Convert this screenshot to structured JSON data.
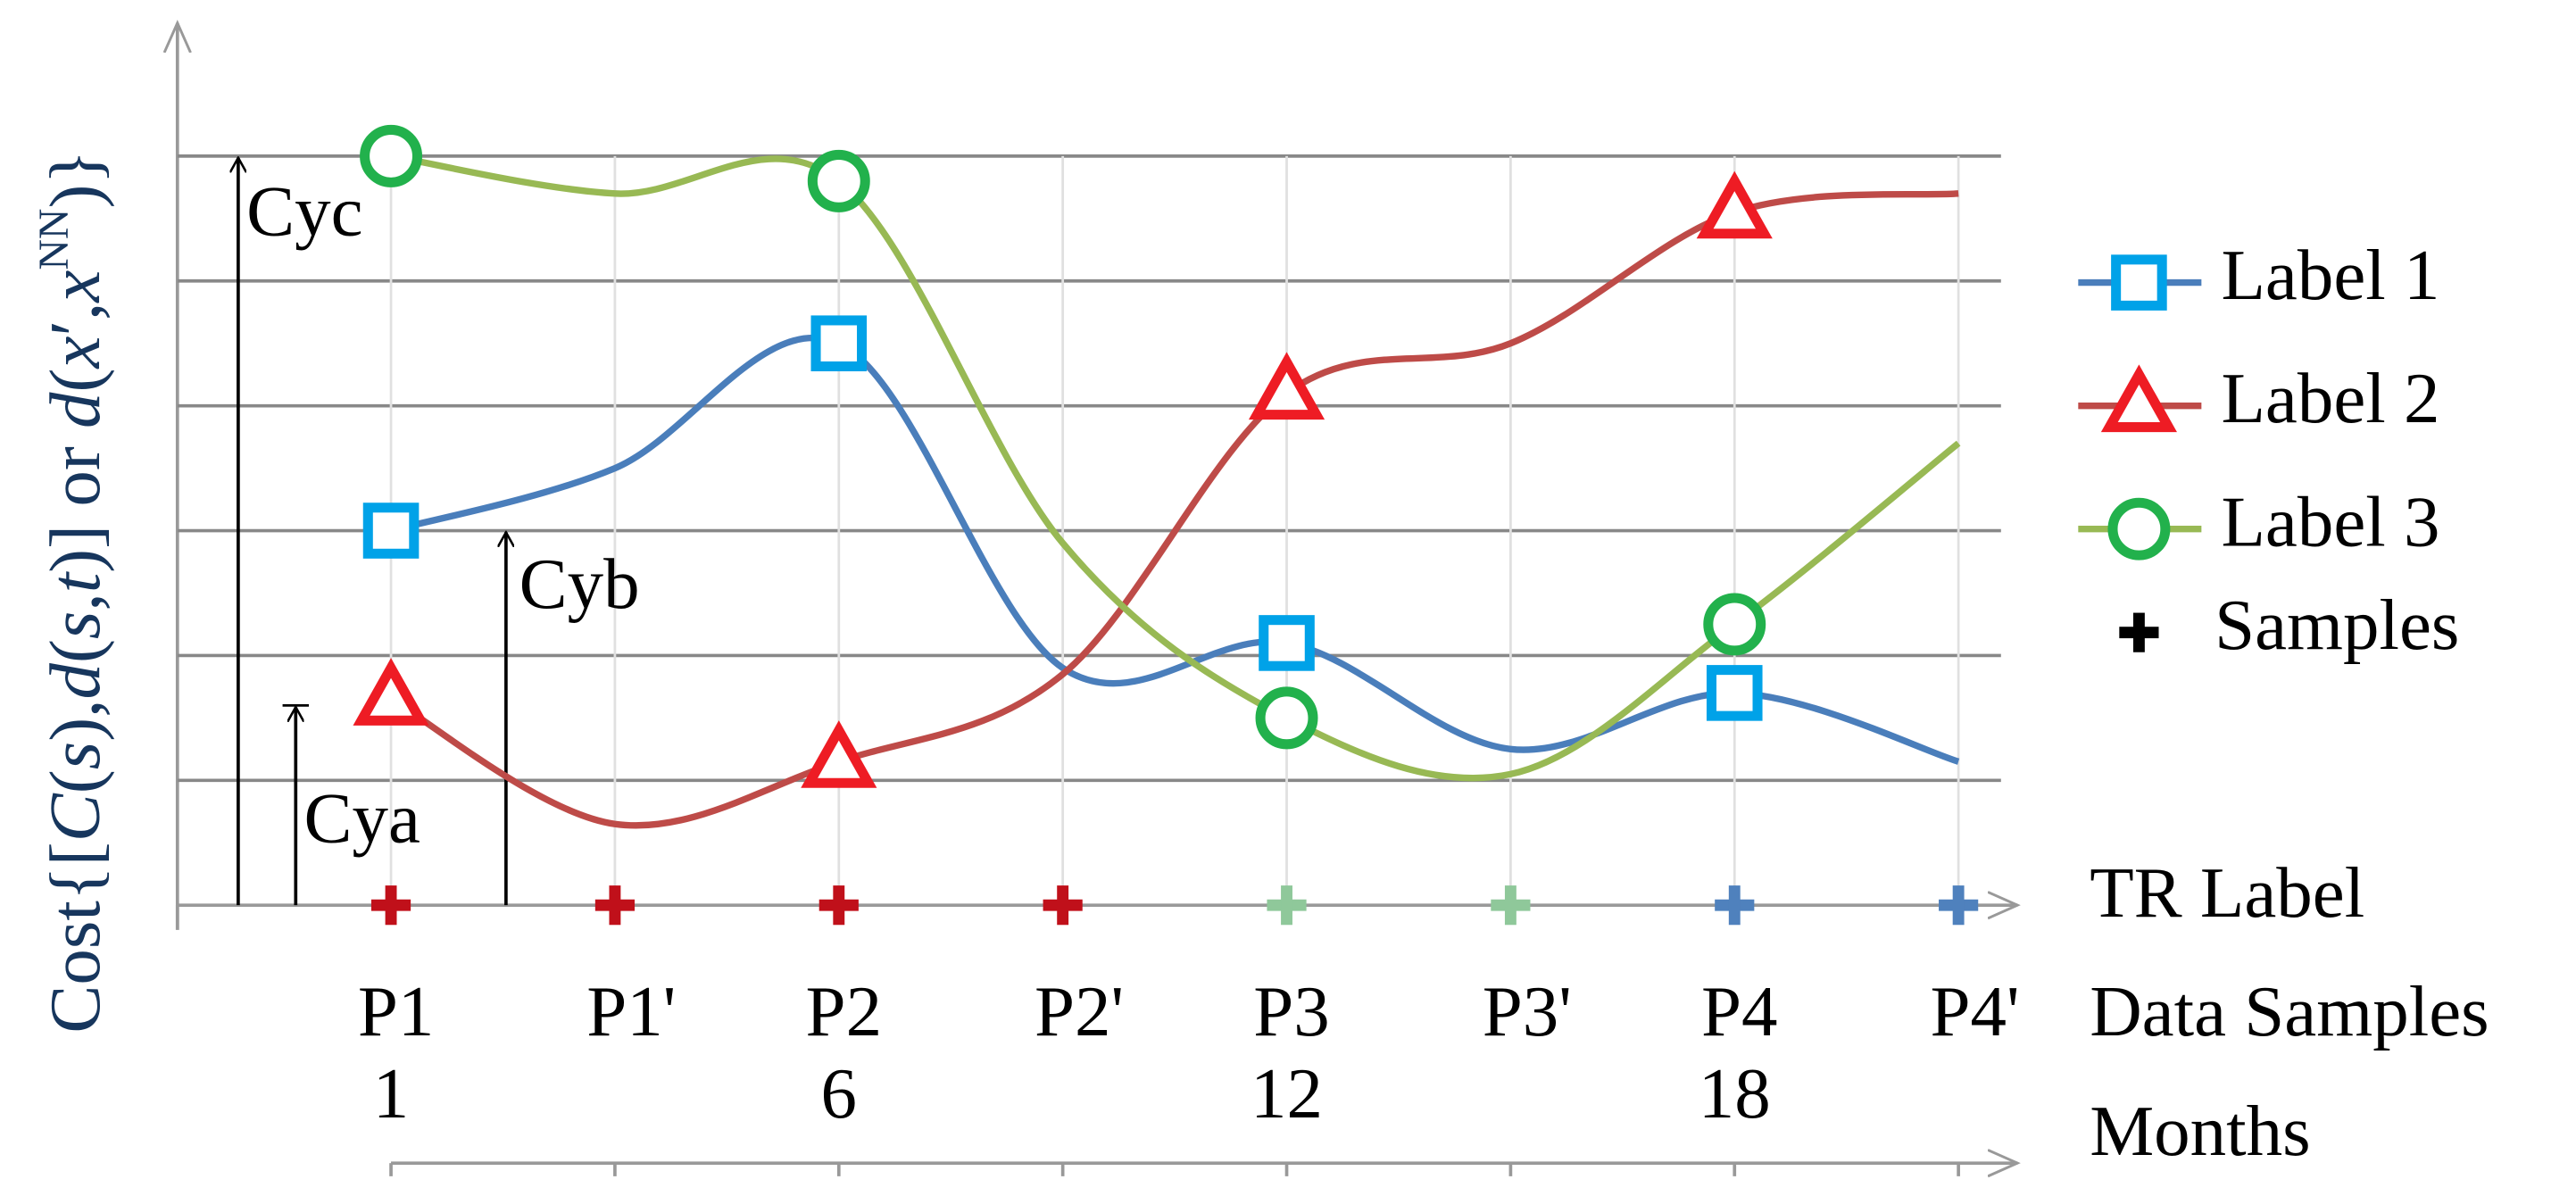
{
  "chart_data": {
    "type": "line",
    "y_label_parts": [
      {
        "text": "Cost{[",
        "style": "normal"
      },
      {
        "text": "C",
        "style": "italic"
      },
      {
        "text": "(",
        "style": "normal"
      },
      {
        "text": "s",
        "style": "italic"
      },
      {
        "text": "),",
        "style": "normal"
      },
      {
        "text": "d",
        "style": "italic"
      },
      {
        "text": "(",
        "style": "normal"
      },
      {
        "text": "s",
        "style": "italic"
      },
      {
        "text": ",",
        "style": "normal"
      },
      {
        "text": "t",
        "style": "italic"
      },
      {
        "text": ")] or ",
        "style": "normal"
      },
      {
        "text": "d",
        "style": "italic"
      },
      {
        "text": "(",
        "style": "normal"
      },
      {
        "text": "x",
        "style": "italic"
      },
      {
        "text": "′,",
        "style": "normal"
      },
      {
        "text": "x",
        "style": "italic"
      },
      {
        "text": "NN",
        "style": "sup"
      },
      {
        "text": ")}",
        "style": "normal"
      }
    ],
    "categories": [
      "P1",
      "P1'",
      "P2",
      "P2'",
      "P3",
      "P3'",
      "P4",
      "P4'"
    ],
    "months": [
      "1",
      null,
      "6",
      null,
      "12",
      null,
      "18",
      null
    ],
    "row_labels": {
      "tr_label": "TR Label",
      "data_samples": "Data Samples",
      "months": "Months"
    },
    "ylim": [
      0,
      7
    ],
    "yticks": [
      1,
      2,
      3,
      4,
      5,
      6
    ],
    "grid": true,
    "series": [
      {
        "name": "Label 1",
        "color": "#4a7ebb",
        "marker_color": "#00a2e8",
        "marker": "square",
        "values": [
          3.0,
          3.5,
          4.5,
          1.9,
          2.1,
          1.25,
          1.7,
          1.15
        ]
      },
      {
        "name": "Label 2",
        "color": "#be4b48",
        "marker_color": "#ee1c24",
        "marker": "triangle",
        "values": [
          1.65,
          0.65,
          1.15,
          1.85,
          4.1,
          4.5,
          5.55,
          5.7
        ]
      },
      {
        "name": "Label 3",
        "color": "#98b954",
        "marker_color": "#22b14c",
        "marker": "circle",
        "values": [
          6.0,
          5.7,
          5.8,
          2.9,
          1.5,
          1.05,
          2.25,
          3.7
        ]
      }
    ],
    "samples": {
      "name": "Samples",
      "color": "#000000",
      "colors": [
        "#c0101a",
        "#c0101a",
        "#c0101a",
        "#c0101a",
        "#8fc89a",
        "#8fc89a",
        "#4f81bd",
        "#4f81bd"
      ]
    },
    "annotations": [
      {
        "text": "Cyc",
        "value": 6.0
      },
      {
        "text": "Cyb",
        "value": 3.0
      },
      {
        "text": "Cya",
        "value": 1.6
      }
    ]
  }
}
